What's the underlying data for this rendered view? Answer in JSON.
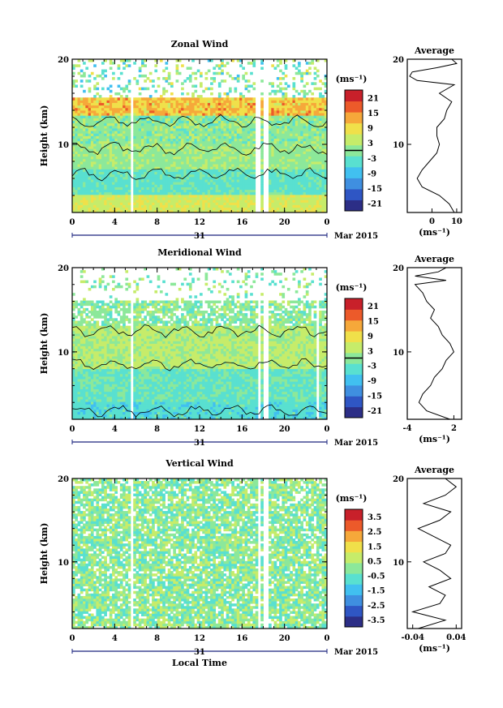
{
  "colors": {
    "palette": [
      "#2c2e86",
      "#2f56c4",
      "#3f8fe0",
      "#41c0f0",
      "#59e0d0",
      "#8ce89a",
      "#c6ec6a",
      "#f0e04a",
      "#f6a83a",
      "#ec5a2a",
      "#c8202a"
    ],
    "contour": "#000000",
    "axis": "#000000"
  },
  "chart_data": [
    {
      "type": "heatmap",
      "title": "Zonal Wind",
      "ylabel": "Height (km)",
      "xlabel": "",
      "x_ticks": [
        "0",
        "4",
        "8",
        "12",
        "16",
        "20",
        "0"
      ],
      "y_ticks": [
        "10",
        "20"
      ],
      "xlim": [
        0,
        24
      ],
      "ylim": [
        2,
        20
      ],
      "date_label": "31",
      "month_label": "Mar 2015",
      "colorbar": {
        "unit": "(ms⁻¹)",
        "ticks": [
          "21",
          "15",
          "9",
          "3",
          "-3",
          "-9",
          "-15",
          "-21"
        ],
        "range": [
          -24,
          24
        ]
      },
      "gaps_hours": [
        5.6,
        17.5,
        18.2
      ],
      "profile": {
        "title": "Average",
        "xlabel": "(ms⁻¹)",
        "x_ticks": [
          "0",
          "10"
        ],
        "xlim": [
          -10,
          12
        ],
        "heights": [
          2,
          3,
          4,
          5,
          6,
          7,
          8,
          9,
          10,
          11,
          12,
          13,
          14,
          15,
          16,
          17,
          17.5,
          18,
          18.5,
          19,
          19.5,
          20
        ],
        "values": [
          9,
          7,
          3,
          -4,
          -6,
          -4,
          -1,
          2,
          3,
          2,
          2,
          5,
          6,
          8,
          3,
          9,
          -6,
          -9,
          -8,
          2,
          10,
          8
        ]
      }
    },
    {
      "type": "heatmap",
      "title": "Meridional Wind",
      "ylabel": "Height (km)",
      "xlabel": "",
      "x_ticks": [
        "0",
        "4",
        "8",
        "12",
        "16",
        "20",
        "0"
      ],
      "y_ticks": [
        "10",
        "20"
      ],
      "xlim": [
        0,
        24
      ],
      "ylim": [
        2,
        20
      ],
      "date_label": "31",
      "month_label": "Mar 2015",
      "colorbar": {
        "unit": "(ms⁻¹)",
        "ticks": [
          "21",
          "15",
          "9",
          "3",
          "-3",
          "-9",
          "-15",
          "-21"
        ],
        "range": [
          -24,
          24
        ]
      },
      "gaps_hours": [
        5.6,
        17.6,
        18.3,
        23.1
      ],
      "profile": {
        "title": "Average",
        "xlabel": "(ms⁻¹)",
        "x_ticks": [
          "-4",
          "2"
        ],
        "xlim": [
          -4,
          3
        ],
        "heights": [
          2,
          3,
          4,
          5,
          6,
          7,
          8,
          9,
          10,
          11,
          12,
          13,
          14,
          15,
          16,
          17,
          18,
          18.5,
          19,
          19.5,
          20
        ],
        "values": [
          1.5,
          -1.5,
          -2.5,
          -2,
          -1,
          -0.5,
          0.5,
          1,
          2,
          1.5,
          0.5,
          0,
          -1,
          -0.5,
          -1.5,
          -2,
          -3,
          1,
          -3,
          0,
          1
        ]
      }
    },
    {
      "type": "heatmap",
      "title": "Vertical Wind",
      "ylabel": "Height (km)",
      "xlabel": "Local Time",
      "x_ticks": [
        "0",
        "4",
        "8",
        "12",
        "16",
        "20",
        "0"
      ],
      "y_ticks": [
        "10",
        "20"
      ],
      "xlim": [
        0,
        24
      ],
      "ylim": [
        2,
        20
      ],
      "date_label": "31",
      "month_label": "Mar 2015",
      "colorbar": {
        "unit": "(ms⁻¹)",
        "ticks": [
          "3.5",
          "2.5",
          "1.5",
          "0.5",
          "-0.5",
          "-1.5",
          "-2.5",
          "-3.5"
        ],
        "range": [
          -4,
          4
        ]
      },
      "gaps_hours": [
        5.6,
        17.6,
        18.3
      ],
      "profile": {
        "title": "Average",
        "xlabel": "(ms⁻¹)",
        "x_ticks": [
          "-0.04",
          "0.04"
        ],
        "xlim": [
          -0.05,
          0.05
        ],
        "heights": [
          2,
          3,
          4,
          5,
          6,
          7,
          8,
          9,
          10,
          11,
          12,
          13,
          14,
          15,
          16,
          17,
          18,
          19,
          20
        ],
        "values": [
          -0.03,
          0.02,
          -0.04,
          0.01,
          0.02,
          -0.01,
          0.03,
          0.01,
          -0.02,
          0.02,
          0.03,
          0.0,
          -0.03,
          0.01,
          0.03,
          -0.02,
          0.02,
          0.04,
          0.02
        ]
      }
    }
  ]
}
